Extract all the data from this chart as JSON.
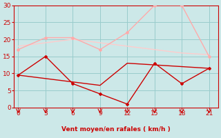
{
  "x": [
    0,
    3,
    6,
    9,
    12,
    15,
    18,
    21
  ],
  "line1_y": [
    17,
    20.5,
    20.5,
    17,
    22,
    30,
    30,
    15
  ],
  "line2_y": [
    18.0,
    19.0,
    20.0,
    19.0,
    18.0,
    17.0,
    16.0,
    15.5
  ],
  "line3_y": [
    9.5,
    15.0,
    7.0,
    4.0,
    1.0,
    13.0,
    7.0,
    11.5
  ],
  "line4_y": [
    9.5,
    8.5,
    7.5,
    6.5,
    13.0,
    12.5,
    12.0,
    11.5
  ],
  "line1_color": "#ffaaaa",
  "line2_color": "#ffcccc",
  "line3_color": "#cc0000",
  "line4_color": "#cc0000",
  "bg_color": "#cce8e8",
  "grid_color": "#99cccc",
  "xlabel": "Vent moyen/en rafales ( km/h )",
  "xlabel_color": "#cc0000",
  "tick_color": "#cc0000",
  "arrow_color": "#cc0000",
  "xlim": [
    -0.5,
    22
  ],
  "ylim": [
    0,
    30
  ],
  "xticks": [
    0,
    3,
    6,
    9,
    12,
    15,
    18,
    21
  ],
  "yticks": [
    0,
    5,
    10,
    15,
    20,
    25,
    30
  ]
}
